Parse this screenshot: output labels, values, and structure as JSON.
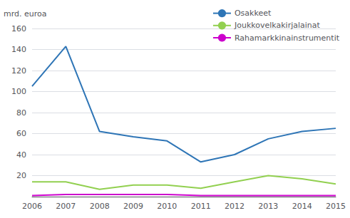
{
  "chart_data": {
    "type": "line",
    "categories": [
      "2006",
      "2007",
      "2008",
      "2009",
      "2010",
      "2011",
      "2012",
      "2013",
      "2014",
      "2015"
    ],
    "series": [
      {
        "name": "Osakkeet",
        "color": "#2e75b6",
        "values": [
          105,
          143,
          62,
          57,
          53,
          33,
          40,
          55,
          62,
          65
        ]
      },
      {
        "name": "Joukkovelkakirjalainat",
        "color": "#92d050",
        "values": [
          14,
          14,
          7,
          11,
          11,
          8,
          14,
          20,
          17,
          12
        ]
      },
      {
        "name": "Rahamarkkinainstrumentit",
        "color": "#cc00cc",
        "values": [
          1,
          2,
          2,
          2,
          2,
          1,
          1,
          1,
          1,
          1
        ]
      }
    ],
    "ylabel": "mrd. euroa",
    "ylim": [
      0,
      160
    ],
    "yticks": [
      20,
      40,
      60,
      80,
      100,
      120,
      140,
      160
    ],
    "grid": true,
    "legend": "upper right"
  }
}
